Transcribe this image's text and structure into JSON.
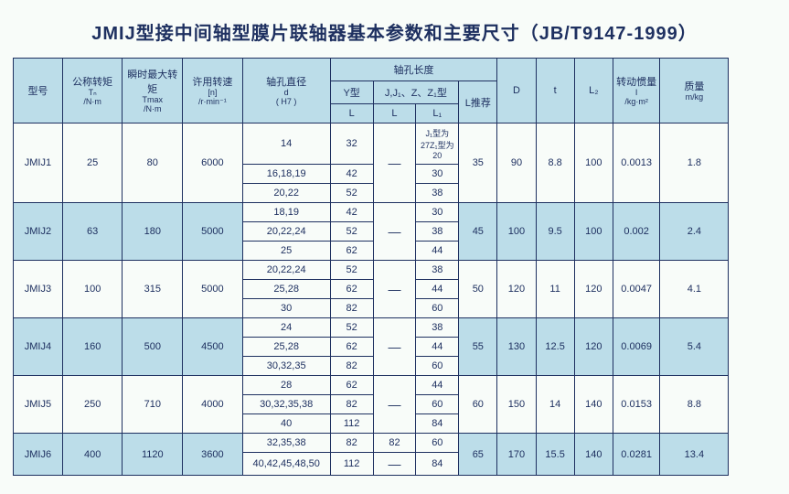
{
  "title": "JMIJ型接中间轴型膜片联轴器基本参数和主要尺寸（JB/T9147-1999）",
  "colors": {
    "header_bg": "#bcdde9",
    "border": "#1e3060",
    "text": "#1e3060",
    "page_bg": "#f8fcf9"
  },
  "header": {
    "model": "型号",
    "tn_label": "公称转矩",
    "tn_sym": "Tₙ",
    "tn_unit": "/N·m",
    "tmax_label": "瞬时最大转矩",
    "tmax_sym": "Tmax",
    "tmax_unit": "/N·m",
    "speed_label": "许用转速",
    "speed_sym": "[n]",
    "speed_unit": "/r·min⁻¹",
    "bore_label": "轴孔直径",
    "bore_sym": "d",
    "bore_tol": "( H7 )",
    "len_group": "轴孔长度",
    "y_type": "Y型",
    "jz_type": "J,J₁、Z、Z₁型",
    "l_rec": "L推荐",
    "L": "L",
    "L1": "L₁",
    "D": "D",
    "t": "t",
    "L2": "L₂",
    "inertia_label": "转动惯量",
    "inertia_sym": "I",
    "inertia_unit": "/kg·m²",
    "mass_label": "质量",
    "mass_unit": "m/kg"
  },
  "dash": "—",
  "jnote": "J₁型为27Z₁型为20",
  "rows": [
    {
      "model": "JMIJ1",
      "tn": "25",
      "tmax": "80",
      "speed": "6000",
      "bores": [
        {
          "d": "14",
          "Ly": "32",
          "Ljz": "",
          "L1": ""
        },
        {
          "d": "16,18,19",
          "Ly": "42",
          "Ljz": "",
          "L1": "30"
        },
        {
          "d": "20,22",
          "Ly": "52",
          "Ljz": "",
          "L1": "38"
        }
      ],
      "Lrec": "35",
      "D": "90",
      "t": "8.8",
      "L2": "100",
      "I": "0.0013",
      "m": "1.8",
      "alt": false
    },
    {
      "model": "JMIJ2",
      "tn": "63",
      "tmax": "180",
      "speed": "5000",
      "bores": [
        {
          "d": "18,19",
          "Ly": "42",
          "Ljz": "",
          "L1": "30"
        },
        {
          "d": "20,22,24",
          "Ly": "52",
          "Ljz": "",
          "L1": "38"
        },
        {
          "d": "25",
          "Ly": "62",
          "Ljz": "",
          "L1": "44"
        }
      ],
      "Lrec": "45",
      "D": "100",
      "t": "9.5",
      "L2": "100",
      "I": "0.002",
      "m": "2.4",
      "alt": true
    },
    {
      "model": "JMIJ3",
      "tn": "100",
      "tmax": "315",
      "speed": "5000",
      "bores": [
        {
          "d": "20,22,24",
          "Ly": "52",
          "Ljz": "",
          "L1": "38"
        },
        {
          "d": "25,28",
          "Ly": "62",
          "Ljz": "",
          "L1": "44"
        },
        {
          "d": "30",
          "Ly": "82",
          "Ljz": "",
          "L1": "60"
        }
      ],
      "Lrec": "50",
      "D": "120",
      "t": "11",
      "L2": "120",
      "I": "0.0047",
      "m": "4.1",
      "alt": false
    },
    {
      "model": "JMIJ4",
      "tn": "160",
      "tmax": "500",
      "speed": "4500",
      "bores": [
        {
          "d": "24",
          "Ly": "52",
          "Ljz": "",
          "L1": "38"
        },
        {
          "d": "25,28",
          "Ly": "62",
          "Ljz": "",
          "L1": "44"
        },
        {
          "d": "30,32,35",
          "Ly": "82",
          "Ljz": "",
          "L1": "60"
        }
      ],
      "Lrec": "55",
      "D": "130",
      "t": "12.5",
      "L2": "120",
      "I": "0.0069",
      "m": "5.4",
      "alt": true
    },
    {
      "model": "JMIJ5",
      "tn": "250",
      "tmax": "710",
      "speed": "4000",
      "bores": [
        {
          "d": "28",
          "Ly": "62",
          "Ljz": "",
          "L1": "44"
        },
        {
          "d": "30,32,35,38",
          "Ly": "82",
          "Ljz": "",
          "L1": "60"
        },
        {
          "d": "40",
          "Ly": "112",
          "Ljz": "",
          "L1": "84"
        }
      ],
      "Lrec": "60",
      "D": "150",
      "t": "14",
      "L2": "140",
      "I": "0.0153",
      "m": "8.8",
      "alt": false
    },
    {
      "model": "JMIJ6",
      "tn": "400",
      "tmax": "1120",
      "speed": "3600",
      "bores": [
        {
          "d": "32,35,38",
          "Ly": "82",
          "Ljz": "82",
          "L1": "60"
        },
        {
          "d": "40,42,45,48,50",
          "Ly": "112",
          "Ljz": "",
          "L1": "84"
        }
      ],
      "Lrec": "65",
      "D": "170",
      "t": "15.5",
      "L2": "140",
      "I": "0.0281",
      "m": "13.4",
      "alt": true
    }
  ]
}
